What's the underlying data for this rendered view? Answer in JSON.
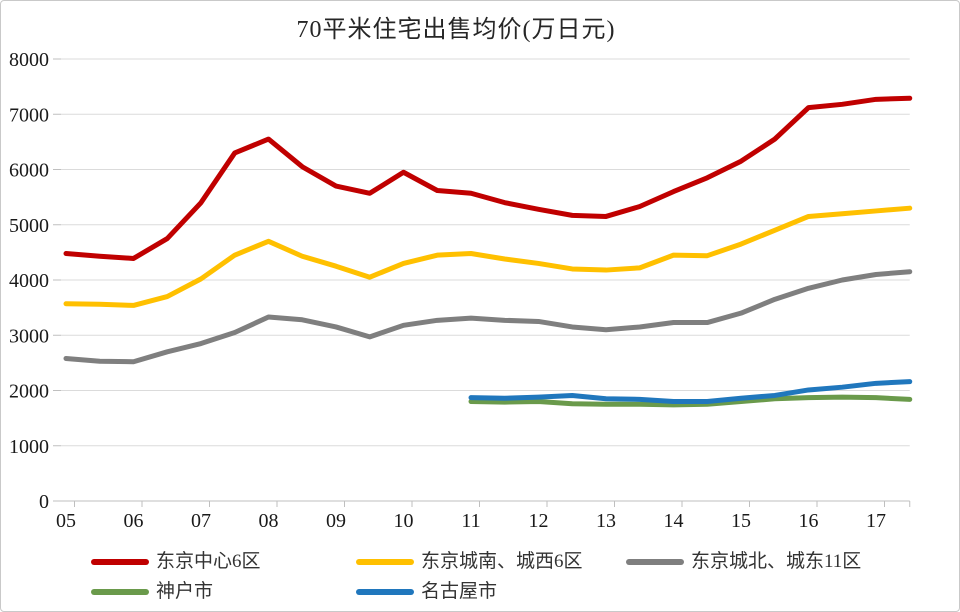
{
  "title": "70平米住宅出售均价(万日元)",
  "chart_data": {
    "type": "line",
    "title": "70平米住宅出售均价(万日元)",
    "xlabel": "",
    "ylabel": "",
    "ylim": [
      0,
      8000
    ],
    "y_ticks": [
      0,
      1000,
      2000,
      3000,
      4000,
      5000,
      6000,
      7000,
      8000
    ],
    "x_tick_labels": [
      "05",
      "06",
      "07",
      "08",
      "09",
      "10",
      "11",
      "12",
      "13",
      "14",
      "15",
      "16",
      "17"
    ],
    "grid": "horizontal-light-gray",
    "legend_position": "bottom",
    "point_interval": "half-year",
    "series": [
      {
        "id": "tokyo-central-6",
        "name": "东京中心6区",
        "color": "#C00000",
        "x": [
          2005,
          2005.5,
          2006,
          2006.5,
          2007,
          2007.5,
          2008,
          2008.5,
          2009,
          2009.5,
          2010,
          2010.5,
          2011,
          2011.5,
          2012,
          2012.5,
          2013,
          2013.5,
          2014,
          2014.5,
          2015,
          2015.5,
          2016,
          2016.5,
          2017,
          2017.5
        ],
        "values": [
          4480,
          4430,
          4390,
          4750,
          5400,
          6300,
          6550,
          6050,
          5700,
          5570,
          5950,
          5620,
          5570,
          5400,
          5280,
          5170,
          5150,
          5330,
          5600,
          5850,
          6150,
          6550,
          7120,
          7180,
          7270,
          7290
        ]
      },
      {
        "id": "tokyo-south-west-6",
        "name": "东京城南、城西6区",
        "color": "#FFC000",
        "x": [
          2005,
          2005.5,
          2006,
          2006.5,
          2007,
          2007.5,
          2008,
          2008.5,
          2009,
          2009.5,
          2010,
          2010.5,
          2011,
          2011.5,
          2012,
          2012.5,
          2013,
          2013.5,
          2014,
          2014.5,
          2015,
          2015.5,
          2016,
          2016.5,
          2017,
          2017.5
        ],
        "values": [
          3570,
          3560,
          3540,
          3700,
          4020,
          4450,
          4700,
          4430,
          4250,
          4050,
          4300,
          4450,
          4480,
          4380,
          4300,
          4200,
          4180,
          4220,
          4450,
          4440,
          4650,
          4900,
          5150,
          5200,
          5250,
          5300
        ]
      },
      {
        "id": "tokyo-north-east-11",
        "name": "东京城北、城东11区",
        "color": "#7F7F7F",
        "x": [
          2005,
          2005.5,
          2006,
          2006.5,
          2007,
          2007.5,
          2008,
          2008.5,
          2009,
          2009.5,
          2010,
          2010.5,
          2011,
          2011.5,
          2012,
          2012.5,
          2013,
          2013.5,
          2014,
          2014.5,
          2015,
          2015.5,
          2016,
          2016.5,
          2017,
          2017.5
        ],
        "values": [
          2580,
          2530,
          2520,
          2700,
          2850,
          3050,
          3330,
          3280,
          3150,
          2970,
          3180,
          3270,
          3310,
          3270,
          3250,
          3150,
          3100,
          3150,
          3230,
          3230,
          3400,
          3650,
          3850,
          4000,
          4100,
          4150
        ]
      },
      {
        "id": "kobe",
        "name": "神户市",
        "color": "#6A9A4B",
        "x": [
          2011,
          2011.5,
          2012,
          2012.5,
          2013,
          2013.5,
          2014,
          2014.5,
          2015,
          2015.5,
          2016,
          2016.5,
          2017,
          2017.5
        ],
        "values": [
          1800,
          1790,
          1800,
          1760,
          1750,
          1750,
          1740,
          1750,
          1800,
          1850,
          1870,
          1880,
          1870,
          1840
        ]
      },
      {
        "id": "nagoya",
        "name": "名古屋市",
        "color": "#2077BD",
        "x": [
          2011,
          2011.5,
          2012,
          2012.5,
          2013,
          2013.5,
          2014,
          2014.5,
          2015,
          2015.5,
          2016,
          2016.5,
          2017,
          2017.5
        ],
        "values": [
          1870,
          1860,
          1880,
          1910,
          1850,
          1840,
          1800,
          1800,
          1860,
          1910,
          2010,
          2060,
          2130,
          2160
        ]
      }
    ]
  }
}
